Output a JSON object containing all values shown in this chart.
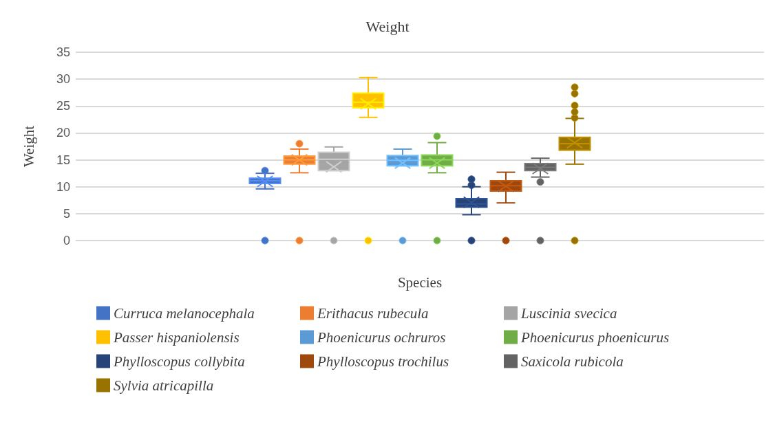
{
  "chart_data": {
    "type": "box",
    "title": "Weight",
    "xlabel": "Species",
    "ylabel": "Weight",
    "categories": [
      null
    ],
    "ylim": [
      0,
      35
    ],
    "yticks": [
      0,
      5,
      10,
      15,
      20,
      25,
      30,
      35
    ],
    "grid": "y",
    "legend": "bottom",
    "series": [
      {
        "name": "Curruca melanocephala",
        "color": "#4472c4",
        "boxes": [
          {
            "low": 9.6,
            "q1": 10.6,
            "median": 11.1,
            "q3": 11.6,
            "high": 12.5,
            "mean": 11.0,
            "outliers": [
              13.0,
              0
            ]
          }
        ]
      },
      {
        "name": "Erithacus rubecula",
        "color": "#ed7d31",
        "boxes": [
          {
            "low": 12.6,
            "q1": 14.2,
            "median": 15.0,
            "q3": 15.7,
            "high": 17.0,
            "mean": 15.0,
            "outliers": [
              18.0,
              0
            ]
          }
        ]
      },
      {
        "name": "Luscinia svecica",
        "color": "#a5a5a5",
        "boxes": [
          {
            "low": 13.0,
            "q1": 13.0,
            "median": 15.1,
            "q3": 16.4,
            "high": 17.4,
            "mean": 13.7,
            "outliers": [
              0
            ]
          }
        ]
      },
      {
        "name": "Passer hispaniolensis",
        "color": "#ffc000",
        "boxes": [
          {
            "low": 22.9,
            "q1": 24.7,
            "median": 25.7,
            "q3": 27.4,
            "high": 30.3,
            "mean": 25.4,
            "outliers": [
              0
            ]
          }
        ]
      },
      {
        "name": "Phoenicurus ochruros",
        "color": "#5b9bd5",
        "boxes": [
          {
            "low": 13.9,
            "q1": 13.9,
            "median": 14.9,
            "q3": 15.8,
            "high": 17.0,
            "mean": 14.4,
            "outliers": [
              0
            ]
          }
        ]
      },
      {
        "name": "Phoenicurus phoenicurus",
        "color": "#70ad47",
        "boxes": [
          {
            "low": 12.6,
            "q1": 13.9,
            "median": 15.0,
            "q3": 15.9,
            "high": 18.2,
            "mean": 14.4,
            "outliers": [
              19.4,
              0
            ]
          }
        ]
      },
      {
        "name": "Phylloscopus collybita",
        "color": "#264478",
        "boxes": [
          {
            "low": 4.8,
            "q1": 6.2,
            "median": 6.8,
            "q3": 7.8,
            "high": 10.0,
            "mean": 7.1,
            "outliers": [
              10.3,
              11.4,
              0
            ]
          }
        ]
      },
      {
        "name": "Phylloscopus trochilus",
        "color": "#9e480e",
        "boxes": [
          {
            "low": 7.0,
            "q1": 9.2,
            "median": 10.2,
            "q3": 11.1,
            "high": 12.7,
            "mean": 10.1,
            "outliers": [
              0
            ]
          }
        ]
      },
      {
        "name": "Saxicola rubicola",
        "color": "#636363",
        "boxes": [
          {
            "low": 11.8,
            "q1": 13.0,
            "median": 13.6,
            "q3": 14.3,
            "high": 15.3,
            "mean": 13.4,
            "outliers": [
              10.9,
              0
            ]
          }
        ]
      },
      {
        "name": "Sylvia atricapilla",
        "color": "#997300",
        "boxes": [
          {
            "low": 14.2,
            "q1": 16.8,
            "median": 18.0,
            "q3": 19.2,
            "high": 22.7,
            "mean": 18.2,
            "outliers": [
              22.8,
              23.9,
              25.1,
              27.3,
              28.5,
              0
            ]
          }
        ]
      }
    ]
  }
}
